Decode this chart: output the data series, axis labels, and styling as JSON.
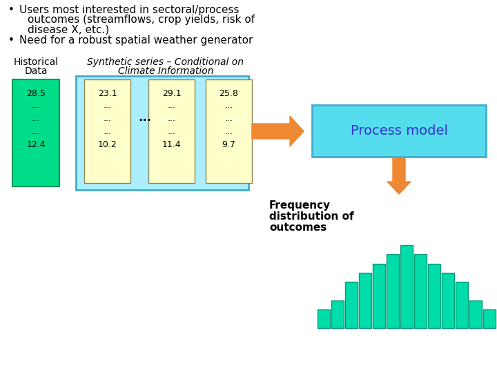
{
  "bg_color": "#ffffff",
  "bullet1_line1": "Users most interested in sectoral/process",
  "bullet1_line2": "outcomes (streamflows, crop yields, risk of",
  "bullet1_line3": "disease X, etc.)",
  "bullet2": "Need for a robust spatial weather generator",
  "hist_label_line1": "Historical",
  "hist_label_line2": "Data",
  "synth_label_line1": "Synthetic series – Conditional on",
  "synth_label_line2": "Climate Information",
  "hist_col_top": "28.5",
  "hist_col_bot": "12.4",
  "col1_top": "23.1",
  "col1_bot": "10.2",
  "col2_top": "29.1",
  "col2_bot": "11.4",
  "col3_top": "25.8",
  "col3_bot": "9.7",
  "ellipsis_mid": "...",
  "process_model_text": "Process model",
  "freq_dist_line1": "Frequency",
  "freq_dist_line2": "distribution of",
  "freq_dist_line3": "outcomes",
  "hist_box_color": "#00dd88",
  "synth_box_bg": "#aaeeff",
  "col_bg_color": "#ffffcc",
  "process_box_color": "#55ddee",
  "process_text_color": "#3333cc",
  "arrow_color": "#ee8833",
  "hist_bar_color": "#00ddaa",
  "hist_bar_edge": "#009977",
  "hist_heights": [
    2,
    3,
    5,
    6,
    7,
    8,
    9,
    8,
    7,
    6,
    5,
    3,
    2
  ],
  "synth_box_edge": "#44aacc",
  "hist_col_edge": "#009955",
  "col_edge": "#888855",
  "proc_box_edge": "#44aacc",
  "font_size_bullet": 11,
  "font_size_label": 10,
  "font_size_col": 9,
  "font_size_proc": 14,
  "font_size_freq": 11
}
